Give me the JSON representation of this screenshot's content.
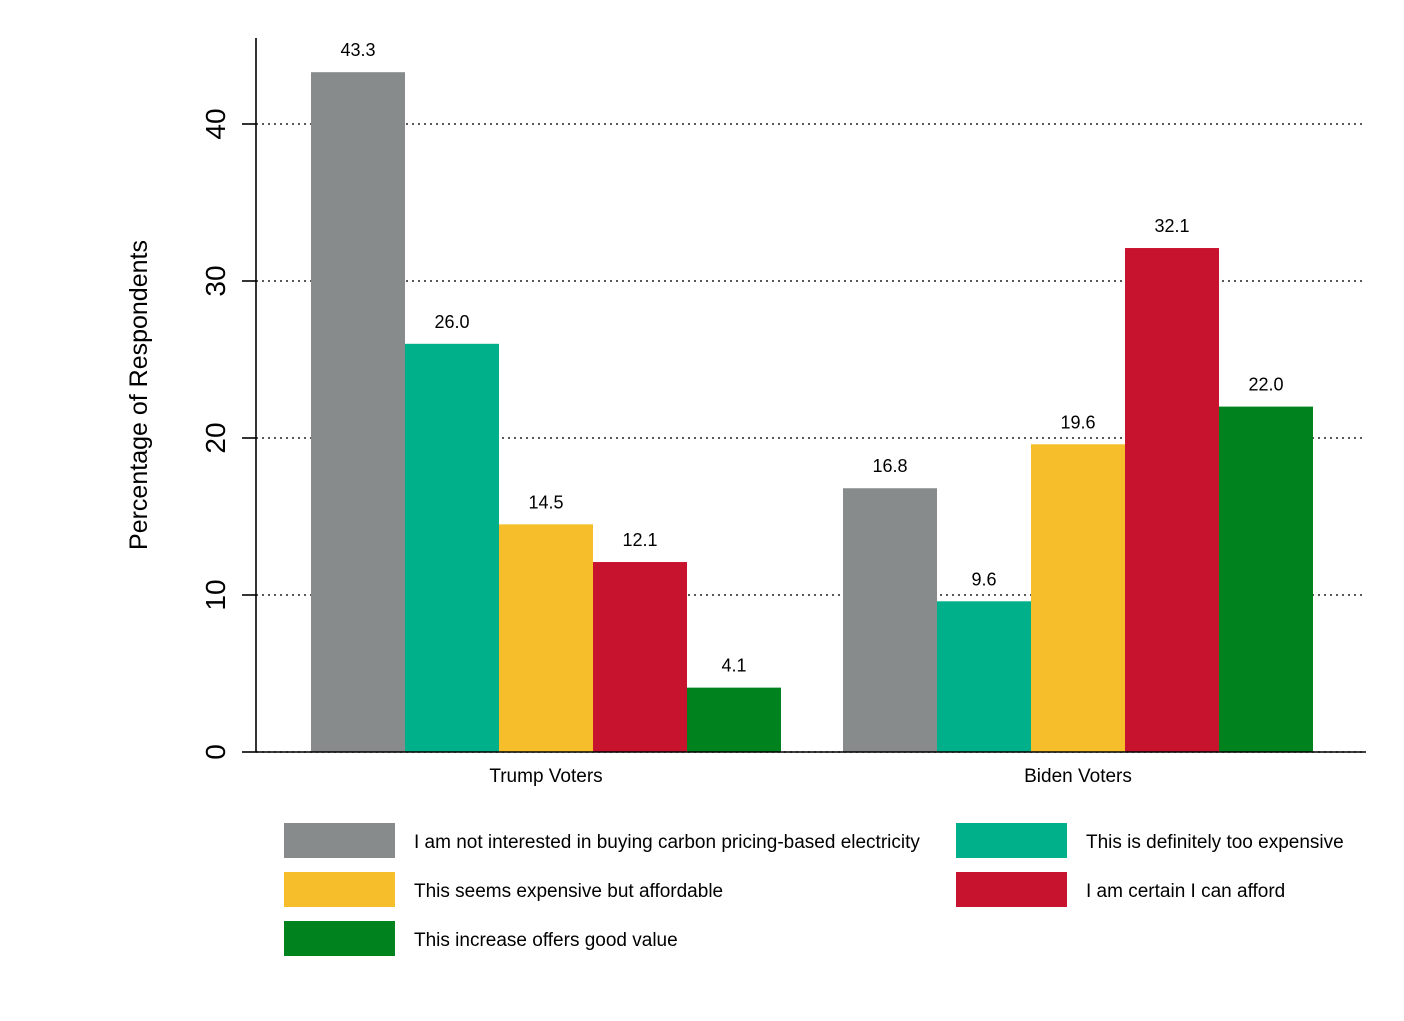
{
  "chart_data": {
    "type": "bar",
    "title": "",
    "xlabel": "",
    "ylabel": "Percentage of Respondents",
    "ylim": [
      0,
      45
    ],
    "yticks": [
      0,
      10,
      20,
      30,
      40
    ],
    "grid": "horizontal dotted",
    "legend_position": "bottom",
    "categories": [
      "Trump Voters",
      "Biden Voters"
    ],
    "series": [
      {
        "name": "I am not interested in buying carbon pricing-based electricity",
        "color": "#878b8c",
        "values": [
          43.3,
          16.8
        ],
        "labels": [
          "43.3",
          "16.8"
        ]
      },
      {
        "name": "This is definitely too expensive",
        "color": "#00b08a",
        "values": [
          26.0,
          9.6
        ],
        "labels": [
          "26.0",
          "9.6"
        ]
      },
      {
        "name": "This seems expensive but affordable",
        "color": "#f5be2a",
        "values": [
          14.5,
          19.6
        ],
        "labels": [
          "14.5",
          "19.6"
        ]
      },
      {
        "name": "I am certain I can afford",
        "color": "#c8132f",
        "values": [
          12.1,
          32.1
        ],
        "labels": [
          "12.1",
          "32.1"
        ]
      },
      {
        "name": "This increase offers good value",
        "color": "#00821e",
        "values": [
          4.1,
          22.0
        ],
        "labels": [
          "4.1",
          "22.0"
        ]
      }
    ]
  }
}
